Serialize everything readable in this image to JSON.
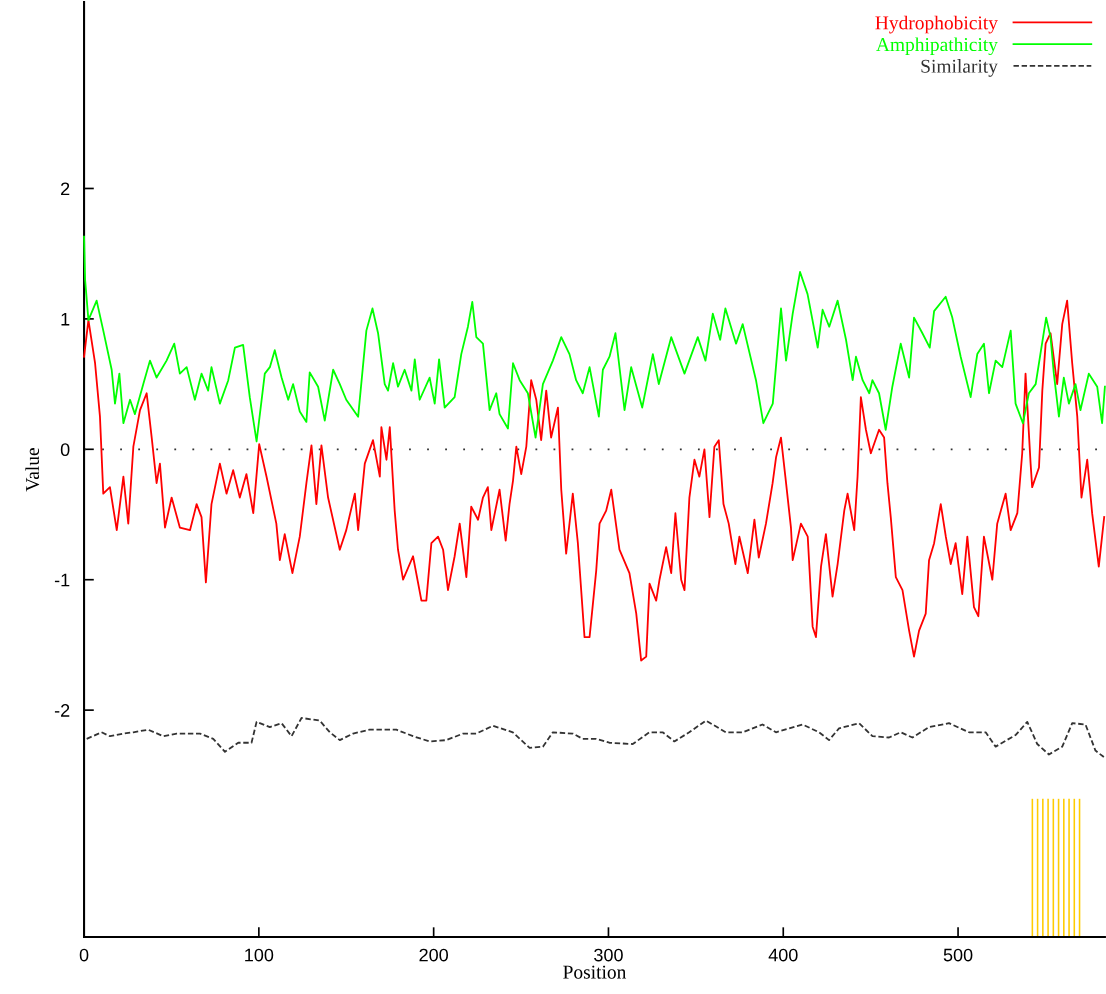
{
  "chart_data": {
    "type": "line",
    "xlabel": "Position",
    "ylabel": "Value",
    "xlim": [
      0,
      584
    ],
    "ylim": [
      -3.74,
      3.43
    ],
    "xticks": [
      0,
      100,
      200,
      300,
      400,
      500
    ],
    "yticks": [
      -2,
      -1,
      0,
      1,
      2
    ],
    "legend": "top right",
    "grid": false,
    "marker": "none",
    "ref_lines": [
      {
        "axis": "y",
        "value": 0,
        "color": "#333333",
        "line_style": "dotted"
      }
    ],
    "series": [
      {
        "name": "Hydrophobicity",
        "color": "#ff0000",
        "line_style": "solid",
        "x": [
          0,
          2.5,
          6.3,
          9.1,
          11,
          14.8,
          18.7,
          22.5,
          25.3,
          28.2,
          32,
          35.8,
          38.7,
          41.5,
          43.4,
          46.3,
          50.1,
          54.8,
          60.6,
          64.4,
          67.2,
          69.7,
          72.9,
          77.7,
          81.5,
          85.3,
          89.1,
          92.9,
          96.8,
          100.2,
          104.4,
          110,
          112,
          114.8,
          119.2,
          123.4,
          127.2,
          130.1,
          132.9,
          135.8,
          139.6,
          146.3,
          150,
          154.9,
          156.8,
          160.6,
          165.3,
          169.2,
          170.1,
          173,
          174.9,
          177.7,
          179.6,
          182.5,
          188.2,
          193,
          195.8,
          198.7,
          202.5,
          205.4,
          208.2,
          212,
          214.9,
          218.7,
          221.5,
          225.4,
          228.2,
          231,
          233,
          237.7,
          241.2,
          243.4,
          245.4,
          247.3,
          250.1,
          253,
          255.8,
          258.7,
          261.5,
          264.4,
          267.2,
          271.1,
          273,
          275.8,
          279.6,
          282.5,
          286.3,
          289.2,
          293,
          294.9,
          298.7,
          301.6,
          306.3,
          312,
          315.9,
          318.7,
          321.6,
          323.5,
          327.3,
          329.2,
          333,
          335.9,
          338.3,
          341.6,
          343.5,
          346.3,
          349.2,
          352,
          354.9,
          357.8,
          360.6,
          363.1,
          365.8,
          368.8,
          372.6,
          374.9,
          379.7,
          383.5,
          386,
          390.1,
          393.9,
          395.9,
          398.7,
          401.2,
          404.4,
          405.4,
          410.1,
          414,
          416.8,
          418.7,
          421.6,
          424.4,
          428.2,
          431.1,
          434.9,
          436.8,
          440.6,
          442.5,
          444.4,
          447.3,
          450.1,
          454.8,
          457.7,
          459.6,
          461.5,
          464.4,
          468.2,
          472,
          474.8,
          477.7,
          481.5,
          483.4,
          486.3,
          490.1,
          493,
          495.8,
          498.6,
          502.4,
          505.3,
          509.1,
          511.6,
          514.8,
          519.6,
          522.4,
          527.2,
          530.1,
          533.9,
          536.7,
          538.6,
          541.5,
          542.4,
          546.3,
          548.2,
          550.1,
          552.9,
          556.7,
          559.6,
          562.4,
          565.3,
          568.2,
          570.6,
          573.9,
          576.7,
          580.5,
          583.6
        ],
        "values": [
          0.71,
          0.99,
          0.66,
          0.25,
          -0.34,
          -0.29,
          -0.62,
          -0.21,
          -0.57,
          0.02,
          0.3,
          0.43,
          0.09,
          -0.26,
          -0.11,
          -0.6,
          -0.37,
          -0.6,
          -0.62,
          -0.42,
          -0.52,
          -1.02,
          -0.42,
          -0.11,
          -0.34,
          -0.16,
          -0.37,
          -0.19,
          -0.49,
          0.04,
          -0.21,
          -0.57,
          -0.85,
          -0.65,
          -0.95,
          -0.67,
          -0.26,
          0.03,
          -0.42,
          0.03,
          -0.37,
          -0.77,
          -0.62,
          -0.34,
          -0.62,
          -0.11,
          0.07,
          -0.21,
          0.17,
          -0.08,
          0.17,
          -0.47,
          -0.77,
          -1.0,
          -0.82,
          -1.16,
          -1.16,
          -0.72,
          -0.67,
          -0.77,
          -1.08,
          -0.82,
          -0.57,
          -0.98,
          -0.44,
          -0.54,
          -0.37,
          -0.29,
          -0.62,
          -0.31,
          -0.7,
          -0.42,
          -0.24,
          0.02,
          -0.19,
          0.02,
          0.53,
          0.38,
          0.07,
          0.45,
          0.09,
          0.32,
          -0.31,
          -0.8,
          -0.34,
          -0.72,
          -1.44,
          -1.44,
          -0.93,
          -0.57,
          -0.47,
          -0.31,
          -0.77,
          -0.95,
          -1.26,
          -1.62,
          -1.59,
          -1.03,
          -1.16,
          -1.0,
          -0.75,
          -0.95,
          -0.49,
          -1.0,
          -1.08,
          -0.37,
          -0.08,
          -0.21,
          0.0,
          -0.52,
          0.02,
          0.07,
          -0.42,
          -0.57,
          -0.88,
          -0.67,
          -0.95,
          -0.54,
          -0.83,
          -0.57,
          -0.26,
          -0.06,
          0.09,
          -0.21,
          -0.6,
          -0.85,
          -0.57,
          -0.67,
          -1.36,
          -1.44,
          -0.9,
          -0.65,
          -1.13,
          -0.88,
          -0.47,
          -0.34,
          -0.62,
          -0.21,
          0.4,
          0.15,
          -0.03,
          0.15,
          0.09,
          -0.26,
          -0.52,
          -0.98,
          -1.08,
          -1.39,
          -1.59,
          -1.39,
          -1.26,
          -0.85,
          -0.72,
          -0.42,
          -0.67,
          -0.88,
          -0.72,
          -1.11,
          -0.67,
          -1.21,
          -1.28,
          -0.67,
          -1.0,
          -0.57,
          -0.34,
          -0.62,
          -0.49,
          -0.03,
          0.58,
          -0.11,
          -0.29,
          -0.14,
          0.45,
          0.81,
          0.89,
          0.5,
          0.96,
          1.14,
          0.66,
          0.25,
          -0.37,
          -0.08,
          -0.49,
          -0.9,
          -0.52
        ]
      },
      {
        "name": "Amphipathicity",
        "color": "#00ff00",
        "line_style": "solid",
        "x": [
          0,
          0.6,
          2.5,
          7.2,
          11,
          15.8,
          17.7,
          20.2,
          22.5,
          26.3,
          29.1,
          33.9,
          37.7,
          41.5,
          47.2,
          51.6,
          54.8,
          58.7,
          63.4,
          67.2,
          71,
          72.9,
          77.7,
          82.5,
          86.3,
          91,
          94.8,
          98.7,
          103.4,
          106.3,
          109.1,
          113,
          116.8,
          119.6,
          123.4,
          127.2,
          129.1,
          133.9,
          137.7,
          142.5,
          146.3,
          150,
          156.8,
          161.5,
          165,
          168.2,
          172,
          173.9,
          176.8,
          179.6,
          183.4,
          187.3,
          189.2,
          192,
          197.7,
          200.6,
          203.1,
          206.3,
          212,
          215.8,
          219.6,
          222.1,
          224.4,
          228.2,
          232,
          235.8,
          237.7,
          242.5,
          245.4,
          249.2,
          253.9,
          258.3,
          262.5,
          268.2,
          273,
          277.7,
          281.5,
          285.3,
          289.2,
          294.5,
          296.8,
          300.6,
          304,
          309.2,
          313,
          319.3,
          325.4,
          328.8,
          335.9,
          343.5,
          351.1,
          355.5,
          359.7,
          363.9,
          366.9,
          373,
          376.8,
          384.4,
          388.6,
          394,
          398.7,
          401.6,
          405.4,
          409.6,
          413.9,
          419.7,
          422.5,
          426.3,
          431.1,
          435.9,
          439.7,
          441.6,
          445.4,
          449.2,
          451,
          454.8,
          458.6,
          462.4,
          467.2,
          472,
          474.8,
          479.6,
          483.8,
          486.3,
          492.9,
          496.7,
          501.5,
          507.2,
          511,
          514.8,
          517.7,
          521.5,
          525.3,
          530.1,
          532.9,
          537.1,
          540.5,
          544.4,
          550.4,
          552.9,
          554.8,
          557.7,
          560.5,
          563.4,
          567.2,
          570,
          574.8,
          579.6,
          582.4,
          584
        ],
        "values": [
          1.63,
          1.3,
          0.99,
          1.14,
          0.91,
          0.61,
          0.35,
          0.58,
          0.2,
          0.38,
          0.27,
          0.5,
          0.68,
          0.55,
          0.68,
          0.81,
          0.58,
          0.63,
          0.38,
          0.58,
          0.45,
          0.63,
          0.35,
          0.53,
          0.78,
          0.8,
          0.4,
          0.06,
          0.58,
          0.63,
          0.76,
          0.55,
          0.38,
          0.5,
          0.29,
          0.21,
          0.59,
          0.48,
          0.22,
          0.61,
          0.5,
          0.38,
          0.25,
          0.91,
          1.08,
          0.89,
          0.5,
          0.45,
          0.66,
          0.48,
          0.61,
          0.45,
          0.69,
          0.38,
          0.55,
          0.35,
          0.69,
          0.32,
          0.4,
          0.73,
          0.94,
          1.13,
          0.86,
          0.81,
          0.3,
          0.43,
          0.27,
          0.16,
          0.66,
          0.53,
          0.43,
          0.09,
          0.5,
          0.68,
          0.86,
          0.73,
          0.53,
          0.43,
          0.63,
          0.25,
          0.61,
          0.71,
          0.89,
          0.3,
          0.63,
          0.32,
          0.73,
          0.5,
          0.86,
          0.58,
          0.86,
          0.68,
          1.04,
          0.84,
          1.08,
          0.81,
          0.96,
          0.53,
          0.2,
          0.35,
          1.08,
          0.68,
          1.04,
          1.36,
          1.19,
          0.78,
          1.07,
          0.94,
          1.14,
          0.84,
          0.53,
          0.71,
          0.53,
          0.43,
          0.53,
          0.43,
          0.15,
          0.48,
          0.81,
          0.55,
          1.01,
          0.89,
          0.78,
          1.06,
          1.17,
          1.01,
          0.71,
          0.4,
          0.73,
          0.81,
          0.43,
          0.68,
          0.63,
          0.91,
          0.35,
          0.2,
          0.43,
          0.5,
          1.01,
          0.86,
          0.58,
          0.25,
          0.55,
          0.35,
          0.5,
          0.3,
          0.58,
          0.48,
          0.2,
          0.48
        ]
      },
      {
        "name": "Similarity",
        "color": "#333333",
        "line_style": "dashed",
        "x": [
          1.5,
          10,
          14.8,
          22.5,
          28.2,
          36.7,
          45.3,
          53,
          66.3,
          73.9,
          80.6,
          88.2,
          95.8,
          98.7,
          106.3,
          113,
          118.7,
          124.4,
          134.8,
          140.6,
          146.3,
          153.9,
          163.4,
          178.7,
          188.2,
          197.7,
          207.2,
          216.8,
          224.4,
          233.9,
          245.3,
          254.9,
          262.5,
          268.2,
          279.6,
          285.3,
          293,
          300.5,
          313.9,
          323.4,
          331,
          337.7,
          346.2,
          355.8,
          367.2,
          376.7,
          388.1,
          395.8,
          411,
          420.5,
          426.2,
          431.9,
          443.4,
          451,
          460.5,
          467.2,
          473.9,
          483.4,
          494.8,
          506.3,
          515.8,
          521.5,
          533,
          539.6,
          545.3,
          552,
          559.6,
          565.3,
          572.9,
          578.6,
          583.4
        ],
        "values": [
          -2.22,
          -2.17,
          -2.2,
          -2.18,
          -2.17,
          -2.15,
          -2.2,
          -2.18,
          -2.18,
          -2.22,
          -2.32,
          -2.25,
          -2.25,
          -2.09,
          -2.13,
          -2.1,
          -2.2,
          -2.06,
          -2.08,
          -2.17,
          -2.23,
          -2.18,
          -2.15,
          -2.15,
          -2.2,
          -2.24,
          -2.23,
          -2.18,
          -2.18,
          -2.12,
          -2.17,
          -2.29,
          -2.28,
          -2.17,
          -2.18,
          -2.22,
          -2.22,
          -2.25,
          -2.26,
          -2.17,
          -2.17,
          -2.24,
          -2.17,
          -2.08,
          -2.17,
          -2.17,
          -2.11,
          -2.17,
          -2.11,
          -2.17,
          -2.23,
          -2.14,
          -2.1,
          -2.2,
          -2.21,
          -2.17,
          -2.21,
          -2.13,
          -2.1,
          -2.17,
          -2.17,
          -2.28,
          -2.19,
          -2.09,
          -2.26,
          -2.34,
          -2.28,
          -2.1,
          -2.11,
          -2.31,
          -2.36
        ]
      },
      {
        "type": "bar",
        "color": "#ffcc00",
        "x": [
          542.5,
          545.5,
          548.5,
          551.5,
          554.5,
          557.5,
          560.5,
          563.5,
          566.5,
          569.5
        ],
        "values": [
          1.06,
          1.06,
          1.06,
          1.06,
          1.06,
          1.06,
          1.06,
          1.06,
          1.06,
          1.06
        ],
        "base": [
          -3.74,
          -3.74,
          -3.74,
          -3.74,
          -3.74,
          -3.74,
          -3.74,
          -3.74,
          -3.74,
          -3.74
        ]
      }
    ]
  }
}
